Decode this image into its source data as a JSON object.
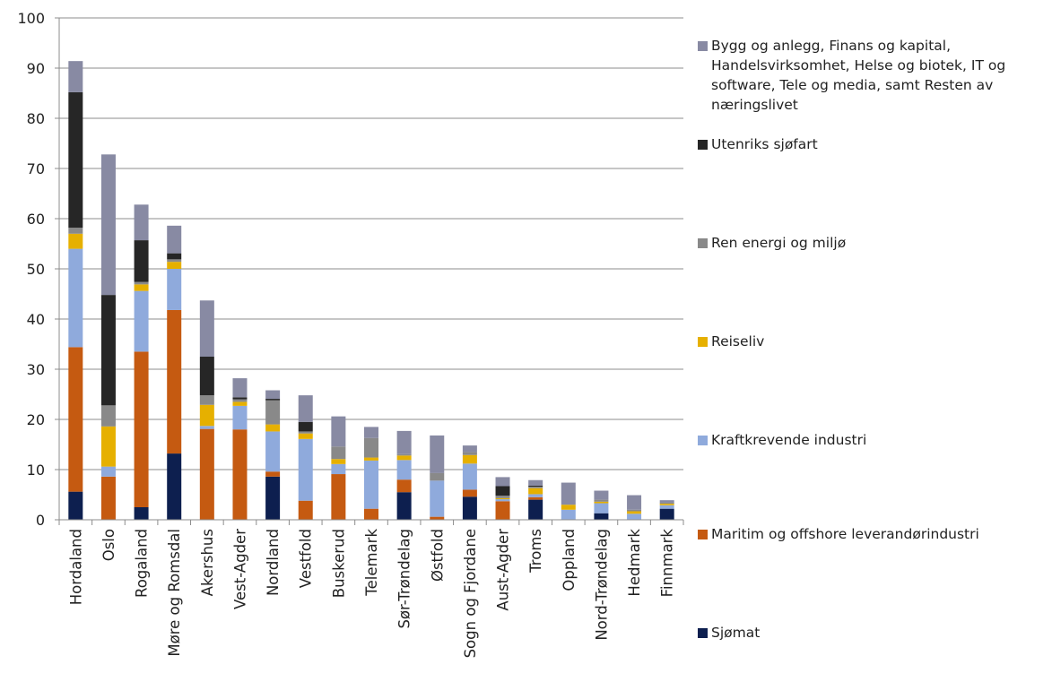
{
  "chart_data": {
    "type": "bar",
    "stacked": true,
    "title": "",
    "xlabel": "",
    "ylabel": "",
    "ylim": [
      0,
      100
    ],
    "yticks": [
      0,
      10,
      20,
      30,
      40,
      50,
      60,
      70,
      80,
      90,
      100
    ],
    "grid": true,
    "legend_position": "right",
    "categories": [
      "Hordaland",
      "Oslo",
      "Rogaland",
      "Møre og Romsdal",
      "Akershus",
      "Vest-Agder",
      "Nordland",
      "Vestfold",
      "Buskerud",
      "Telemark",
      "Sør-Trøndelag",
      "Østfold",
      "Sogn og Fjordane",
      "Aust-Agder",
      "Troms",
      "Oppland",
      "Nord-Trøndelag",
      "Hedmark",
      "Finnmark"
    ],
    "series": [
      {
        "name": "Sjømat",
        "color": "#0d1f4f",
        "values": [
          5.6,
          0,
          2.5,
          13.2,
          0,
          0,
          8.6,
          0,
          0,
          0,
          5.5,
          0,
          4.6,
          0,
          4.0,
          0,
          1.3,
          0,
          2.2
        ]
      },
      {
        "name": "Maritim og offshore leverandørindustri",
        "color": "#c55a11",
        "values": [
          28.8,
          8.6,
          31.0,
          28.6,
          18.1,
          18.0,
          1.0,
          3.8,
          9.1,
          2.2,
          2.5,
          0.6,
          1.4,
          3.7,
          0.5,
          0,
          0,
          0,
          0
        ]
      },
      {
        "name": "Kraftkrevende industri",
        "color": "#8faadc",
        "values": [
          19.6,
          2.0,
          12.1,
          8.2,
          0.6,
          4.7,
          8.0,
          12.3,
          2.0,
          9.6,
          3.9,
          7.2,
          5.2,
          0.4,
          0.6,
          2.0,
          2.0,
          1.2,
          0.7
        ]
      },
      {
        "name": "Reiseliv",
        "color": "#e6b000",
        "values": [
          3.0,
          8.0,
          1.3,
          1.4,
          4.2,
          0.8,
          1.4,
          1.1,
          1.0,
          0.6,
          0.9,
          0,
          1.7,
          0.2,
          1.2,
          1.0,
          0.3,
          0.5,
          0.3
        ]
      },
      {
        "name": "Ren energi og miljø",
        "color": "#898989",
        "values": [
          1.2,
          4.2,
          0.5,
          0.5,
          1.9,
          0.5,
          4.8,
          0.4,
          2.5,
          3.9,
          0.3,
          1.5,
          0.6,
          0.5,
          0.3,
          0,
          0.4,
          0.3,
          0.2
        ]
      },
      {
        "name": "Utenriks sjøfart",
        "color": "#262626",
        "values": [
          27.0,
          22.0,
          8.3,
          1.2,
          7.7,
          0.4,
          0.3,
          1.9,
          0,
          0,
          0,
          0,
          0,
          1.9,
          0.2,
          0,
          0,
          0,
          0
        ]
      },
      {
        "name": "Bygg og anlegg, Finans og kapital, Handelsvirksomhet, Helse og biotek, IT og software, Tele og media, samt Resten av næringslivet",
        "color": "#888aa3",
        "values": [
          6.2,
          28.0,
          7.1,
          5.5,
          11.2,
          3.8,
          1.7,
          5.3,
          6.0,
          2.2,
          4.6,
          7.5,
          1.3,
          1.8,
          1.1,
          4.4,
          1.8,
          2.9,
          0.5
        ]
      }
    ]
  }
}
